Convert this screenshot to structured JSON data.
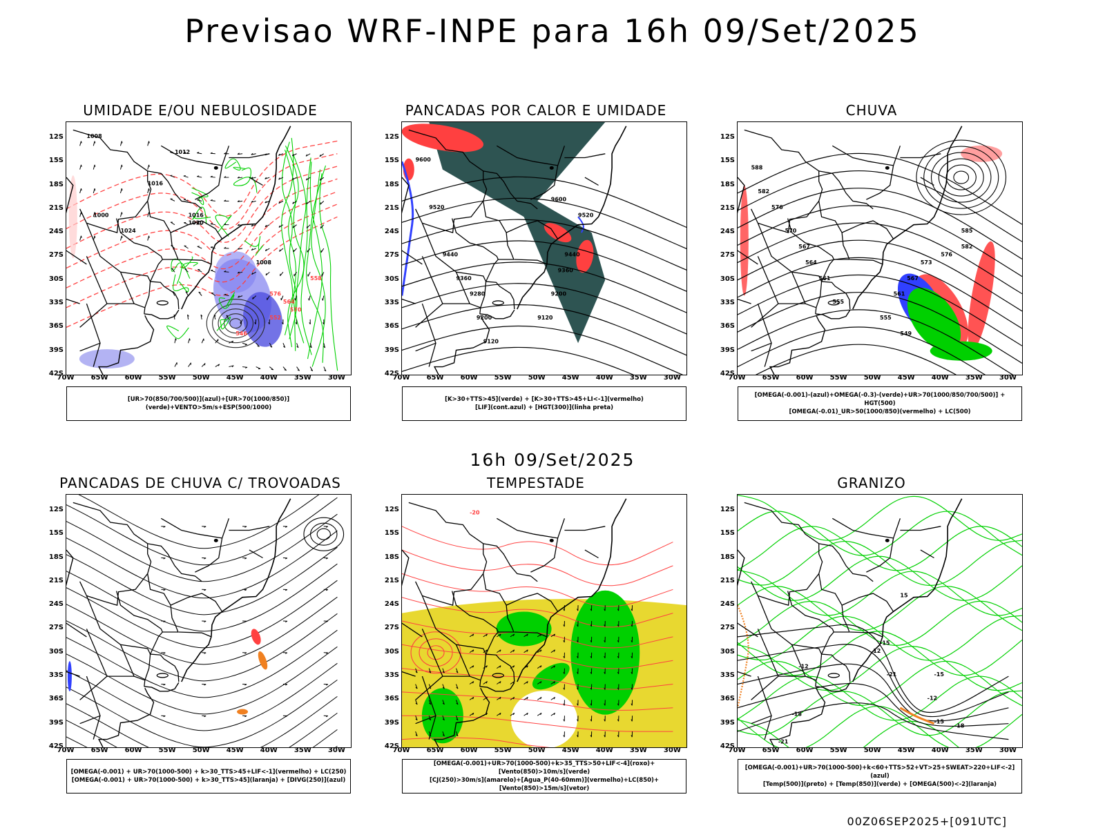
{
  "main_title": "Previsao WRF-INPE  para 16h 09/Set/2025",
  "mid_title": "16h 09/Set/2025",
  "footer_code": "00Z06SEP2025+[091UTC]",
  "axes": {
    "lat_labels": [
      "12S",
      "15S",
      "18S",
      "21S",
      "24S",
      "27S",
      "30S",
      "33S",
      "36S",
      "39S",
      "42S"
    ],
    "lon_labels": [
      "70W",
      "65W",
      "60W",
      "55W",
      "50W",
      "45W",
      "40W",
      "35W",
      "30W"
    ]
  },
  "colors": {
    "blue_humidity": "#8080f0",
    "blue_line": "#3040ff",
    "green": "#00d000",
    "red": "#ff4040",
    "dark_teal": "#2e5452",
    "orange": "#f08020",
    "yellow": "#e8d830",
    "black": "#000000"
  },
  "panels": [
    {
      "title": "UMIDADE E/OU NEBULOSIDADE",
      "legend_lines": [
        "[UR>70(850/700/500)](azul)+[UR>70(1000/850)](verde)+VENTO>5m/s+ESP(500/1000)"
      ],
      "contour_labels": [
        "1008",
        "1012",
        "1016",
        "1016",
        "1020",
        "1024",
        "1000",
        "1008",
        "576",
        "570",
        "564",
        "558",
        "552",
        "546"
      ]
    },
    {
      "title": "PANCADAS POR CALOR E UMIDADE",
      "legend_lines": [
        "[K>30+TTS>45](verde) + [K>30+TTS>45+LI<-1](vermelho)",
        "[LIF](cont.azul) + [HGT(300)](linha preta)"
      ],
      "contour_labels": [
        "9600",
        "9520",
        "9440",
        "9360",
        "9280",
        "9200",
        "9120",
        "9600",
        "9520",
        "9440",
        "9360",
        "9200",
        "9120"
      ]
    },
    {
      "title": "CHUVA",
      "legend_lines": [
        "[OMEGA(-0.001)-(azul)+OMEGA(-0.3)-(verde)+UR>70(1000/850/700/500)] + HGT(500)",
        "[OMEGA(-0.01)_UR>50(1000/850)(vermelho) + LC(500)"
      ],
      "contour_labels": [
        "588",
        "582",
        "576",
        "570",
        "567",
        "564",
        "561",
        "555",
        "585",
        "582",
        "576",
        "573",
        "567",
        "561",
        "555",
        "549"
      ]
    },
    {
      "title": "PANCADAS DE CHUVA C/ TROVOADAS",
      "legend_lines": [
        "[OMEGA(-0.001) + UR>70(1000-500) + k>30_TTS>45+LIF<-1](vermelho) + LC(250)",
        "[OMEGA(-0.001) + UR>70(1000-500) + k>30_TTS>45](laranja) + [DIVG(250)](azul)"
      ],
      "contour_labels": []
    },
    {
      "title": "TEMPESTADE",
      "legend_lines": [
        "[OMEGA(-0.001)+UR>70(1000-500)+k>35_TTS>50+LIF<-4](roxo)+[Vento(850)>10m/s](verde)",
        "[CJ(250)>30m/s](amarelo)+[Agua_P(40-60mm)](vermelho)+LC(850)+[Vento(850)>15m/s](vetor)"
      ],
      "contour_labels": [
        "-20"
      ]
    },
    {
      "title": "GRANIZO",
      "legend_lines": [
        "[OMEGA(-0.001)+UR>70(1000-500)+k<60+TTS>52+VT>25+SWEAT>220+LIF<-2](azul)",
        "[Temp(500)](preto) + [Temp(850)](verde) + [OMEGA(500)<-2](laranja)"
      ],
      "contour_labels": [
        "-12",
        "-15",
        "-18",
        "-21",
        "-12",
        "-15",
        "-18",
        "-21",
        "-15",
        "12",
        "15"
      ]
    }
  ]
}
